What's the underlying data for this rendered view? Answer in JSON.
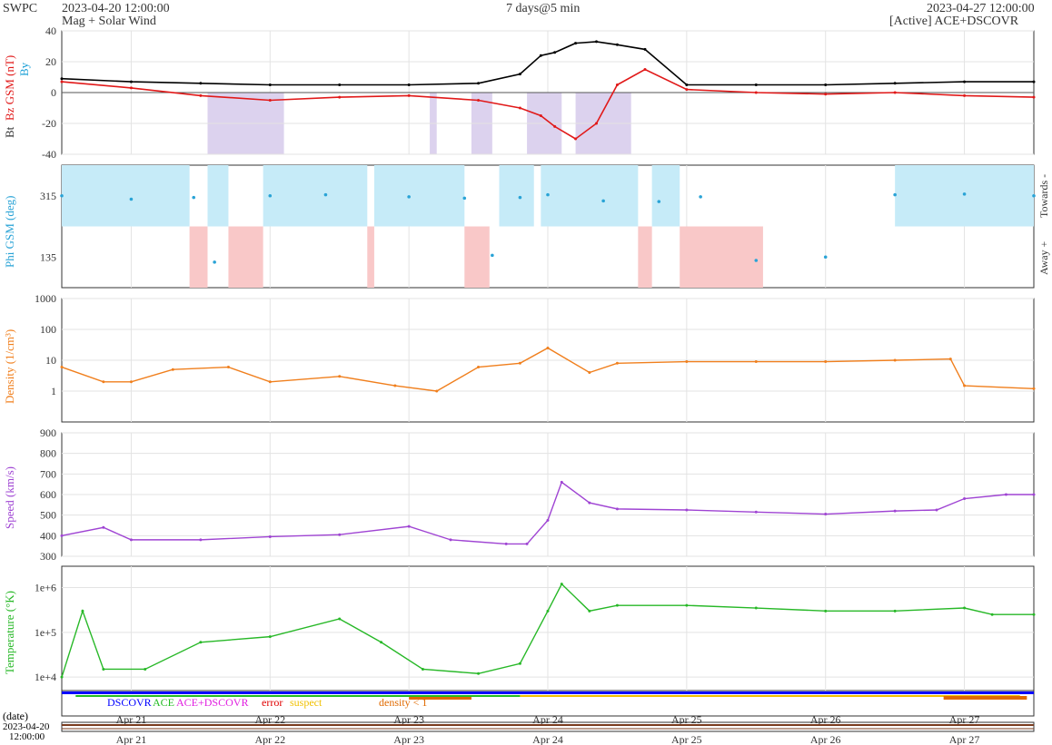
{
  "header": {
    "org": "SWPC",
    "start": "2023-04-20 12:00:00",
    "subtitle": "Mag + Solar Wind",
    "span": "7 days@5 min",
    "end": "2023-04-27 12:00:00",
    "source": "[Active] ACE+DSCOVR"
  },
  "colors": {
    "bt": "#000000",
    "bz": "#e11919",
    "by": "#1a9fd6",
    "phi": "#29a3d6",
    "towards_fill": "#c6ebf8",
    "away_fill": "#f9c8c8",
    "south_fill": "#dcd2ee",
    "density": "#f07f1d",
    "speed": "#9f44d3",
    "temperature": "#27b827",
    "dscovr": "#0000ff",
    "ace": "#22bb22",
    "ace_dscovr": "#e020e0",
    "error": "#e00000",
    "suspect": "#f0c000",
    "density_lt1": "#e06a00"
  },
  "x_axis": {
    "tick_labels": [
      "Apr 21",
      "Apr 22",
      "Apr 23",
      "Apr 24",
      "Apr 25",
      "Apr 26",
      "Apr 27"
    ],
    "date_label": "(date)",
    "start_date": "2023-04-20",
    "start_time": "12:00:00"
  },
  "legend": {
    "dscovr": "DSCOVR",
    "ace": "ACE",
    "ace_dscovr": "ACE+DSCOVR",
    "error": "error",
    "suspect": "suspect",
    "density": "density < 1"
  },
  "chart_data": [
    {
      "type": "line",
      "panel": "magnetic_field",
      "ylabel_bt": "Bt",
      "ylabel_bz": "Bz GSM (nT)",
      "ylabel_by": "By",
      "ylim": [
        -40,
        40
      ],
      "y_ticks": [
        "40",
        "20",
        "0",
        "-20",
        "-40"
      ],
      "x_days": [
        0,
        0.5,
        1,
        1.5,
        2,
        2.5,
        3,
        3.3,
        3.45,
        3.55,
        3.7,
        3.85,
        4,
        4.2,
        4.5,
        5,
        5.5,
        6,
        6.5,
        7
      ],
      "series": [
        {
          "key": "bt",
          "values": [
            9,
            7,
            6,
            5,
            5,
            5,
            6,
            12,
            24,
            26,
            32,
            33,
            31,
            28,
            5,
            5,
            5,
            6,
            7,
            7
          ]
        },
        {
          "key": "bz",
          "values": [
            7,
            3,
            -2,
            -5,
            -3,
            -2,
            -5,
            -10,
            -15,
            -22,
            -30,
            -20,
            5,
            15,
            2,
            0,
            -1,
            0,
            -2,
            -3
          ]
        }
      ],
      "south_shading_days": [
        [
          1.05,
          1.6
        ],
        [
          2.65,
          2.7
        ],
        [
          2.95,
          3.1
        ],
        [
          3.35,
          3.6
        ],
        [
          3.7,
          4.1
        ]
      ]
    },
    {
      "type": "scatter",
      "panel": "phi",
      "ylabel": "Phi GSM (deg)",
      "y_ticks": [
        "315",
        "135"
      ],
      "right_labels": [
        "Towards -",
        "Away +"
      ],
      "x_days": [
        0,
        0.5,
        0.95,
        1.1,
        1.5,
        1.9,
        2.5,
        2.9,
        3.1,
        3.3,
        3.5,
        3.9,
        4.3,
        4.6,
        5.0,
        5.5,
        6.0,
        6.5,
        7
      ],
      "values": [
        315,
        305,
        310,
        120,
        315,
        318,
        312,
        308,
        140,
        310,
        318,
        300,
        298,
        312,
        125,
        135,
        318,
        320,
        315
      ],
      "towards_spans_days": [
        [
          0,
          0.92
        ],
        [
          1.05,
          1.2
        ],
        [
          1.45,
          2.2
        ],
        [
          2.25,
          2.9
        ],
        [
          3.15,
          3.4
        ],
        [
          3.45,
          4.15
        ],
        [
          4.25,
          4.45
        ],
        [
          6.0,
          7
        ]
      ],
      "away_spans_days": [
        [
          0.92,
          1.05
        ],
        [
          1.2,
          1.45
        ],
        [
          2.2,
          2.25
        ],
        [
          2.9,
          3.08
        ],
        [
          4.15,
          4.25
        ],
        [
          4.45,
          5.05
        ]
      ]
    },
    {
      "type": "line",
      "panel": "density",
      "ylabel": "Density (1/cm³)",
      "yscale": "log",
      "ylim": [
        0.1,
        1000
      ],
      "y_ticks": [
        "1000",
        "100",
        "10",
        "1"
      ],
      "x_days": [
        0,
        0.3,
        0.5,
        0.8,
        1.2,
        1.5,
        2.0,
        2.4,
        2.7,
        3.0,
        3.3,
        3.5,
        3.8,
        4.0,
        4.5,
        5.0,
        5.5,
        6.0,
        6.4,
        6.5,
        7
      ],
      "values": [
        6,
        2,
        2,
        5,
        6,
        2,
        3,
        1.5,
        1,
        6,
        8,
        25,
        4,
        8,
        9,
        9,
        9,
        10,
        11,
        1.5,
        1.2
      ]
    },
    {
      "type": "line",
      "panel": "speed",
      "ylabel": "Speed (km/s)",
      "ylim": [
        300,
        900
      ],
      "y_ticks": [
        "900",
        "800",
        "700",
        "600",
        "500",
        "400",
        "300"
      ],
      "x_days": [
        0,
        0.3,
        0.5,
        1.0,
        1.5,
        2.0,
        2.5,
        2.8,
        3.2,
        3.35,
        3.5,
        3.6,
        3.8,
        4.0,
        4.5,
        5.0,
        5.5,
        6.0,
        6.3,
        6.5,
        6.8,
        7
      ],
      "values": [
        400,
        440,
        380,
        380,
        395,
        405,
        445,
        380,
        360,
        360,
        475,
        660,
        560,
        530,
        525,
        515,
        505,
        520,
        525,
        580,
        600,
        600
      ]
    },
    {
      "type": "line",
      "panel": "temperature",
      "ylabel": "Temperature (°K)",
      "yscale": "log",
      "ylim": [
        5000,
        3000000
      ],
      "y_ticks": [
        "1e+6",
        "1e+5",
        "1e+4"
      ],
      "x_days": [
        0,
        0.15,
        0.3,
        0.6,
        1.0,
        1.5,
        2.0,
        2.3,
        2.6,
        3.0,
        3.3,
        3.5,
        3.6,
        3.8,
        4.0,
        4.5,
        5.0,
        5.5,
        6.0,
        6.5,
        6.7,
        7
      ],
      "values": [
        10000,
        300000,
        15000,
        15000,
        60000,
        80000,
        200000,
        60000,
        15000,
        12000,
        20000,
        300000,
        1200000,
        300000,
        400000,
        400000,
        350000,
        300000,
        300000,
        350000,
        250000,
        250000
      ]
    }
  ]
}
